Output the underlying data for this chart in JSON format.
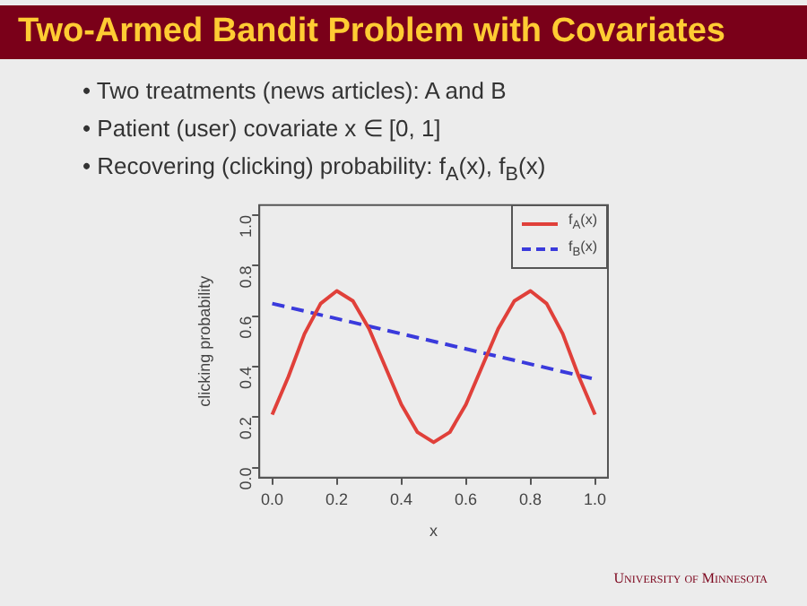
{
  "chart_data": {
    "type": "line",
    "title": "Two-Armed Bandit Problem with Covariates",
    "annotations": [
      "• Two treatments (news articles): A and B",
      "• Patient (user) covariate x ∈ [0, 1]",
      "• Recovering (clicking) probability: f$_{A}$(x), f$_{B}$(x)",
      "University of Minnesota"
    ],
    "xlabel": "x",
    "ylabel": "clicking probability",
    "x": [
      0,
      0.05,
      0.1,
      0.15,
      0.2,
      0.25,
      0.3,
      0.35,
      0.4,
      0.45,
      0.5,
      0.55,
      0.6,
      0.65,
      0.7,
      0.75,
      0.8,
      0.85,
      0.9,
      0.95,
      1
    ],
    "series": [
      {
        "name": "f$_{A}$(x)",
        "color": "#e0403a",
        "line_style": "solid",
        "values": [
          0.21,
          0.36,
          0.53,
          0.65,
          0.7,
          0.66,
          0.55,
          0.4,
          0.25,
          0.14,
          0.1,
          0.14,
          0.25,
          0.4,
          0.55,
          0.66,
          0.7,
          0.65,
          0.53,
          0.36,
          0.21
        ]
      },
      {
        "name": "f$_{B}$(x)",
        "color": "#3a3adc",
        "line_style": "dashed",
        "x": [
          0,
          1
        ],
        "values": [
          0.65,
          0.35
        ]
      }
    ],
    "xlim": [
      -0.04,
      1.04
    ],
    "ylim": [
      -0.04,
      1.04
    ],
    "xticks": [
      {
        "value": 0,
        "label": "0.0"
      },
      0.2,
      0.4,
      0.6,
      0.8,
      {
        "value": 1,
        "label": "1.0"
      }
    ],
    "yticks": [
      {
        "value": 0,
        "label": "0.0"
      },
      0.2,
      0.4,
      0.6,
      0.8,
      {
        "value": 1,
        "label": "1.0"
      }
    ],
    "grid": false,
    "legend": "top right",
    "marker": "none"
  }
}
